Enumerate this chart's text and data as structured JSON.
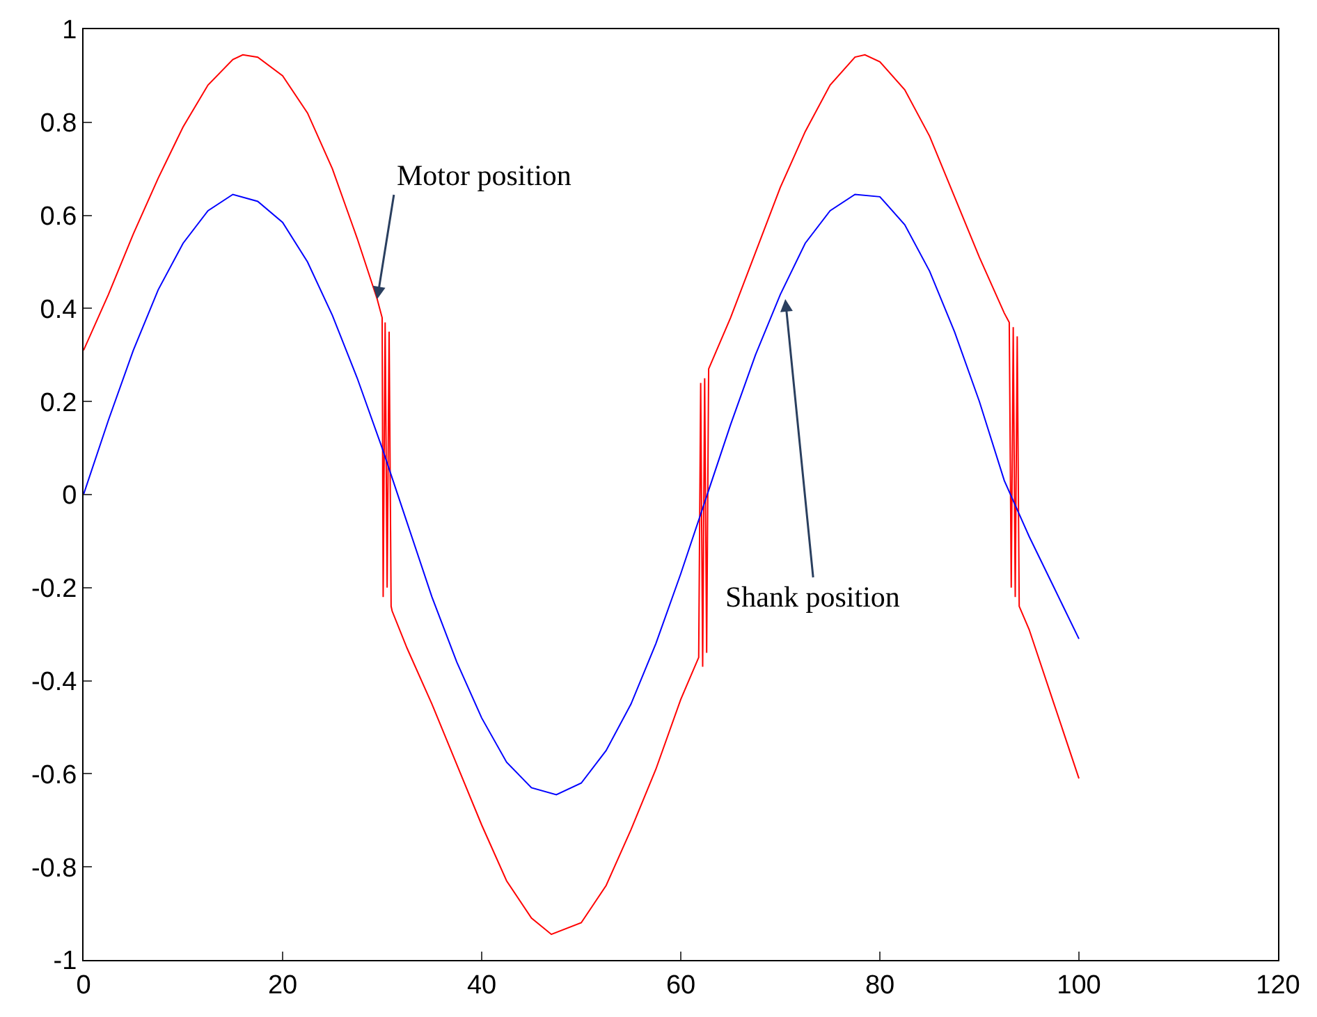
{
  "chart_data": {
    "type": "line",
    "xlim": [
      0,
      120
    ],
    "ylim": [
      -1,
      1
    ],
    "xticks": [
      0,
      20,
      40,
      60,
      80,
      100,
      120
    ],
    "yticks": [
      -1,
      -0.8,
      -0.6,
      -0.4,
      -0.2,
      0,
      0.2,
      0.4,
      0.6,
      0.8,
      1
    ],
    "marker": "none",
    "line_style": "solid",
    "series": [
      {
        "color": "#ff0000",
        "x": [
          0,
          2.5,
          5,
          7.5,
          10,
          12.5,
          15,
          16,
          17.5,
          20,
          22.5,
          25,
          27.5,
          29.5,
          30,
          30.1,
          30.3,
          30.5,
          30.7,
          30.9,
          31,
          32.5,
          35,
          37.5,
          40,
          42.5,
          45,
          47,
          50,
          52.5,
          55,
          57.5,
          60,
          61.8,
          62,
          62.2,
          62.4,
          62.6,
          62.8,
          65,
          67.5,
          70,
          72.5,
          75,
          77.5,
          78.5,
          80,
          82.5,
          85,
          87.5,
          90,
          92.5,
          93,
          93.2,
          93.4,
          93.6,
          93.8,
          94,
          95,
          97.5,
          100
        ],
        "values": [
          0.31,
          0.43,
          0.56,
          0.68,
          0.79,
          0.88,
          0.935,
          0.945,
          0.94,
          0.9,
          0.82,
          0.7,
          0.55,
          0.42,
          0.38,
          -0.22,
          0.37,
          -0.2,
          0.35,
          -0.24,
          -0.25,
          -0.33,
          -0.45,
          -0.58,
          -0.71,
          -0.83,
          -0.91,
          -0.945,
          -0.92,
          -0.84,
          -0.72,
          -0.59,
          -0.44,
          -0.35,
          0.24,
          -0.37,
          0.25,
          -0.34,
          0.27,
          0.38,
          0.52,
          0.66,
          0.78,
          0.88,
          0.94,
          0.945,
          0.93,
          0.87,
          0.77,
          0.64,
          0.51,
          0.39,
          0.37,
          -0.2,
          0.36,
          -0.22,
          0.34,
          -0.24,
          -0.29,
          -0.45,
          -0.61
        ]
      },
      {
        "color": "#0000ff",
        "x": [
          0,
          2.5,
          5,
          7.5,
          10,
          12.5,
          15,
          17.5,
          20,
          22.5,
          25,
          27.5,
          30,
          32.5,
          35,
          37.5,
          40,
          42.5,
          45,
          47.5,
          50,
          52.5,
          55,
          57.5,
          60,
          62.5,
          65,
          67.5,
          70,
          72.5,
          75,
          77.5,
          80,
          82.5,
          85,
          87.5,
          90,
          92.5,
          95,
          97.5,
          100
        ],
        "values": [
          0.0,
          0.16,
          0.31,
          0.44,
          0.54,
          0.61,
          0.645,
          0.63,
          0.585,
          0.5,
          0.385,
          0.25,
          0.1,
          -0.06,
          -0.22,
          -0.36,
          -0.48,
          -0.575,
          -0.63,
          -0.645,
          -0.62,
          -0.55,
          -0.45,
          -0.32,
          -0.17,
          -0.01,
          0.15,
          0.3,
          0.43,
          0.54,
          0.61,
          0.645,
          0.64,
          0.58,
          0.48,
          0.35,
          0.2,
          0.03,
          -0.09,
          -0.2,
          -0.31
        ]
      }
    ],
    "annotations": [
      {
        "text": "Motor position",
        "x": 29.5,
        "y": 0.42
      },
      {
        "text": "Shank position",
        "x": 70.5,
        "y": 0.42
      }
    ]
  }
}
